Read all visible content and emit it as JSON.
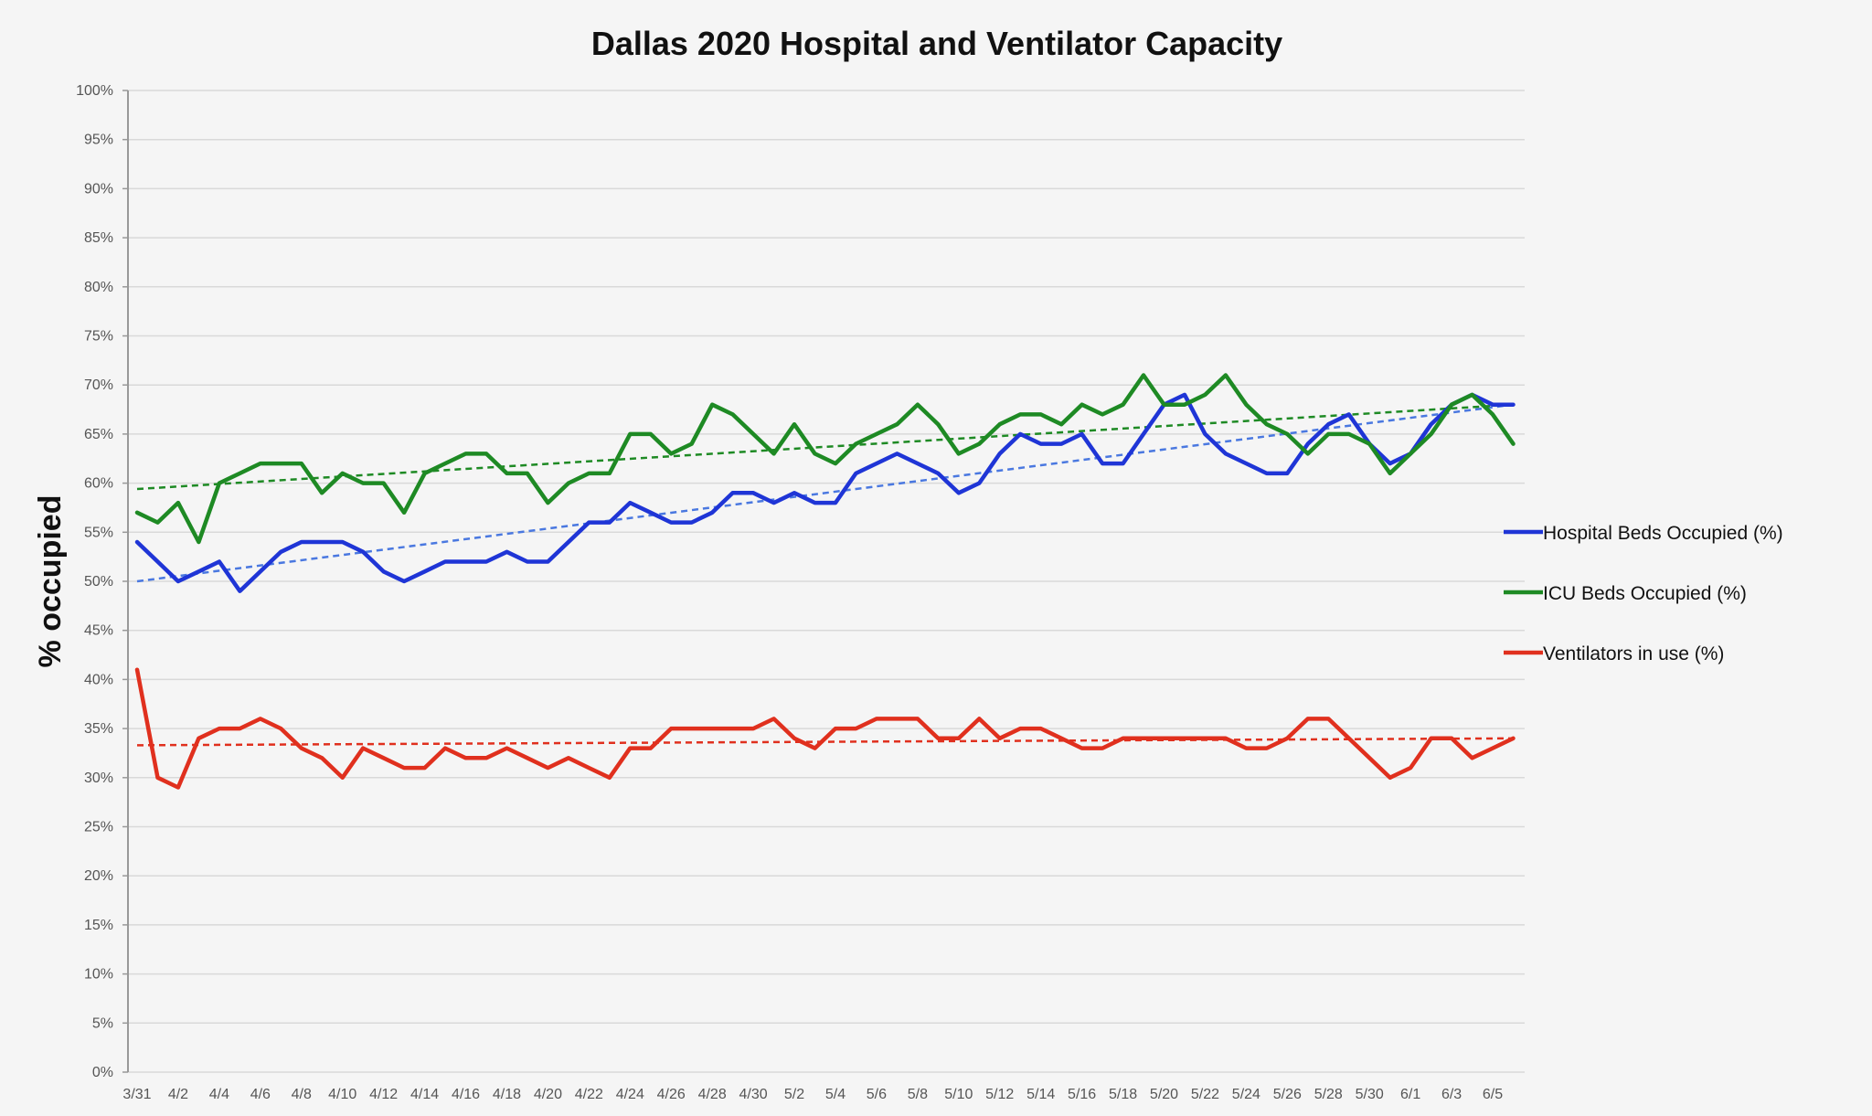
{
  "chart_data": {
    "type": "line",
    "title": "Dallas 2020 Hospital and Ventilator Capacity",
    "xlabel": "",
    "ylabel": "% occupied",
    "ylim": [
      0,
      100
    ],
    "y_ticks": [
      "0%",
      "5%",
      "10%",
      "15%",
      "20%",
      "25%",
      "30%",
      "35%",
      "40%",
      "45%",
      "50%",
      "55%",
      "60%",
      "65%",
      "70%",
      "75%",
      "80%",
      "85%",
      "90%",
      "95%",
      "100%"
    ],
    "x": [
      "3/31",
      "4/1",
      "4/2",
      "4/3",
      "4/4",
      "4/5",
      "4/6",
      "4/7",
      "4/8",
      "4/9",
      "4/10",
      "4/11",
      "4/12",
      "4/13",
      "4/14",
      "4/15",
      "4/16",
      "4/17",
      "4/18",
      "4/19",
      "4/20",
      "4/21",
      "4/22",
      "4/23",
      "4/24",
      "4/25",
      "4/26",
      "4/27",
      "4/28",
      "4/29",
      "4/30",
      "5/1",
      "5/2",
      "5/3",
      "5/4",
      "5/5",
      "5/6",
      "5/7",
      "5/8",
      "5/9",
      "5/10",
      "5/11",
      "5/12",
      "5/13",
      "5/14",
      "5/15",
      "5/16",
      "5/17",
      "5/18",
      "5/19",
      "5/20",
      "5/21",
      "5/22",
      "5/23",
      "5/24",
      "5/25",
      "5/26",
      "5/27",
      "5/28",
      "5/29",
      "5/30",
      "5/31",
      "6/1",
      "6/2",
      "6/3",
      "6/4",
      "6/5",
      "6/6"
    ],
    "x_tick_labels": [
      "3/31",
      "4/2",
      "4/4",
      "4/6",
      "4/8",
      "4/10",
      "4/12",
      "4/14",
      "4/16",
      "4/18",
      "4/20",
      "4/22",
      "4/24",
      "4/26",
      "4/28",
      "4/30",
      "5/2",
      "5/4",
      "5/6",
      "5/8",
      "5/10",
      "5/12",
      "5/14",
      "5/16",
      "5/18",
      "5/20",
      "5/22",
      "5/24",
      "5/26",
      "5/28",
      "5/30",
      "6/1",
      "6/3",
      "6/5"
    ],
    "grid": true,
    "legend_position": "right",
    "series": [
      {
        "name": "Hospital Beds Occupied (%)",
        "color": "#1f35d6",
        "values": [
          54,
          52,
          50,
          51,
          52,
          49,
          51,
          53,
          54,
          54,
          54,
          53,
          51,
          50,
          51,
          52,
          52,
          52,
          53,
          52,
          52,
          54,
          56,
          56,
          58,
          57,
          56,
          56,
          57,
          59,
          59,
          58,
          59,
          58,
          58,
          61,
          62,
          63,
          62,
          61,
          59,
          60,
          63,
          65,
          64,
          64,
          65,
          62,
          62,
          65,
          68,
          69,
          65,
          63,
          62,
          61,
          61,
          64,
          66,
          67,
          64,
          62,
          63,
          66,
          68,
          69,
          68,
          68
        ],
        "trend": {
          "color": "#4a78e0",
          "start": 50,
          "end": 68
        }
      },
      {
        "name": "ICU Beds Occupied (%)",
        "color": "#1e8a24",
        "values": [
          57,
          56,
          58,
          54,
          60,
          61,
          62,
          62,
          62,
          59,
          61,
          60,
          60,
          57,
          61,
          62,
          63,
          63,
          61,
          61,
          58,
          60,
          61,
          61,
          65,
          65,
          63,
          64,
          68,
          67,
          65,
          63,
          66,
          63,
          62,
          64,
          65,
          66,
          68,
          66,
          63,
          64,
          66,
          67,
          67,
          66,
          68,
          67,
          68,
          71,
          68,
          68,
          69,
          71,
          68,
          66,
          65,
          63,
          65,
          65,
          64,
          61,
          63,
          65,
          68,
          69,
          67,
          64
        ],
        "trend": {
          "color": "#1e8a24",
          "start": 59.4,
          "end": 68
        }
      },
      {
        "name": "Ventilators in use (%)",
        "color": "#e0301e",
        "values": [
          41,
          30,
          29,
          34,
          35,
          35,
          36,
          35,
          33,
          32,
          30,
          33,
          32,
          31,
          31,
          33,
          32,
          32,
          33,
          32,
          31,
          32,
          31,
          30,
          33,
          33,
          35,
          35,
          35,
          35,
          35,
          36,
          34,
          33,
          35,
          35,
          36,
          36,
          36,
          34,
          34,
          36,
          34,
          35,
          35,
          34,
          33,
          33,
          34,
          34,
          34,
          34,
          34,
          34,
          33,
          33,
          34,
          36,
          36,
          34,
          32,
          30,
          31,
          34,
          34,
          32,
          33,
          34
        ],
        "trend": {
          "color": "#e0301e",
          "start": 33.3,
          "end": 34
        }
      }
    ]
  }
}
